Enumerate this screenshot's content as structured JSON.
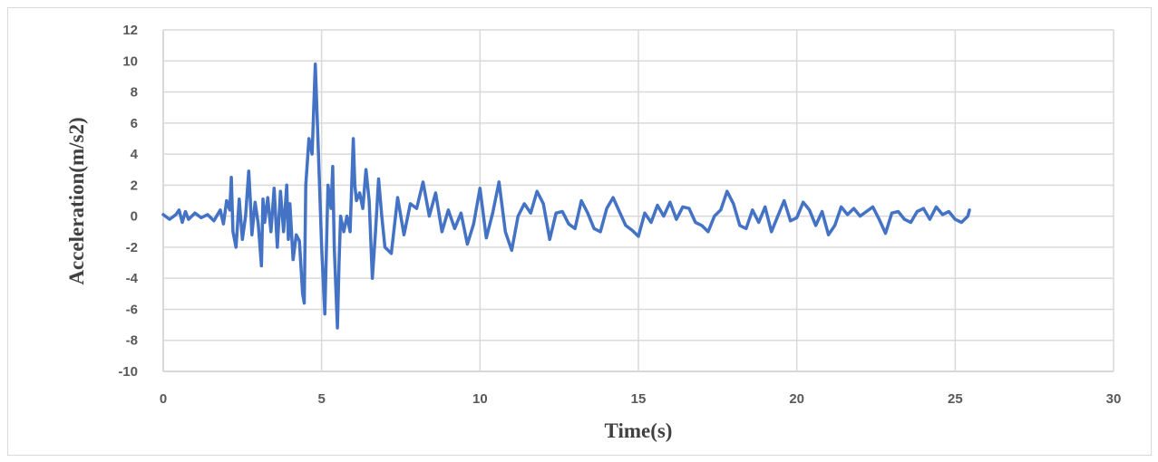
{
  "chart_data": {
    "type": "line",
    "title": "",
    "xlabel": "Time(s)",
    "ylabel": "Acceleration(m/s2)",
    "xlim": [
      0,
      30
    ],
    "ylim": [
      -10,
      12
    ],
    "x_ticks": [
      "0",
      "5",
      "10",
      "15",
      "20",
      "25",
      "30"
    ],
    "y_ticks": [
      "12",
      "10",
      "8",
      "6",
      "4",
      "2",
      "0",
      "-2",
      "-4",
      "-6",
      "-8",
      "-10"
    ],
    "grid": true,
    "legend": "none",
    "series": [
      {
        "color": "#4472C4",
        "x": [
          0,
          0.2,
          0.4,
          0.5,
          0.6,
          0.7,
          0.8,
          1.0,
          1.2,
          1.4,
          1.6,
          1.8,
          1.9,
          2.0,
          2.1,
          2.15,
          2.2,
          2.3,
          2.4,
          2.5,
          2.6,
          2.7,
          2.75,
          2.8,
          2.9,
          3.0,
          3.1,
          3.15,
          3.2,
          3.3,
          3.4,
          3.5,
          3.6,
          3.7,
          3.8,
          3.9,
          3.95,
          4.0,
          4.1,
          4.2,
          4.3,
          4.4,
          4.45,
          4.5,
          4.6,
          4.7,
          4.8,
          4.85,
          4.9,
          5.0,
          5.1,
          5.2,
          5.3,
          5.35,
          5.4,
          5.5,
          5.55,
          5.6,
          5.7,
          5.8,
          5.9,
          6.0,
          6.05,
          6.1,
          6.2,
          6.3,
          6.4,
          6.5,
          6.6,
          6.7,
          6.8,
          6.9,
          7.0,
          7.2,
          7.4,
          7.6,
          7.8,
          8.0,
          8.2,
          8.4,
          8.6,
          8.8,
          9.0,
          9.2,
          9.4,
          9.6,
          9.8,
          10.0,
          10.2,
          10.4,
          10.6,
          10.8,
          11.0,
          11.2,
          11.4,
          11.6,
          11.8,
          12.0,
          12.2,
          12.4,
          12.6,
          12.8,
          13.0,
          13.2,
          13.4,
          13.6,
          13.8,
          14.0,
          14.2,
          14.4,
          14.6,
          14.8,
          15.0,
          15.2,
          15.4,
          15.6,
          15.8,
          16.0,
          16.2,
          16.4,
          16.6,
          16.8,
          17.0,
          17.2,
          17.4,
          17.6,
          17.8,
          18.0,
          18.2,
          18.4,
          18.6,
          18.8,
          19.0,
          19.2,
          19.4,
          19.6,
          19.8,
          20.0,
          20.2,
          20.4,
          20.6,
          20.8,
          21.0,
          21.2,
          21.4,
          21.6,
          21.8,
          22.0,
          22.2,
          22.4,
          22.6,
          22.8,
          23.0,
          23.2,
          23.4,
          23.6,
          23.8,
          24.0,
          24.2,
          24.4,
          24.6,
          24.8,
          25.0,
          25.2,
          25.4,
          25.45
        ],
        "y": [
          0.1,
          -0.2,
          0.1,
          0.4,
          -0.4,
          0.3,
          -0.2,
          0.2,
          -0.1,
          0.1,
          -0.3,
          0.4,
          -0.5,
          1.0,
          0.4,
          2.5,
          -1.0,
          -2.0,
          1.1,
          -1.5,
          0.0,
          2.9,
          1.0,
          -1.2,
          0.9,
          -0.5,
          -3.2,
          1.1,
          -0.4,
          1.2,
          -1.0,
          1.8,
          -2.0,
          1.6,
          -1.0,
          2.0,
          -1.5,
          0.8,
          -2.8,
          -1.2,
          -1.6,
          -5.0,
          -5.6,
          2.0,
          5.0,
          4.0,
          9.8,
          7.0,
          4.0,
          -2.0,
          -6.3,
          2.0,
          0.5,
          3.2,
          -2.0,
          -7.2,
          -3.0,
          0.0,
          -1.0,
          0.0,
          -1.0,
          5.0,
          2.0,
          1.0,
          1.5,
          0.5,
          3.0,
          1.0,
          -4.0,
          -1.0,
          2.4,
          0.0,
          -2.0,
          -2.4,
          1.2,
          -1.2,
          0.8,
          0.5,
          2.2,
          0.0,
          1.5,
          -1.0,
          0.4,
          -0.8,
          0.2,
          -1.8,
          -0.5,
          1.8,
          -1.4,
          0.2,
          2.2,
          -1.0,
          -2.2,
          0.0,
          0.8,
          0.2,
          1.6,
          0.8,
          -1.5,
          0.2,
          0.3,
          -0.5,
          -0.8,
          1.0,
          0.2,
          -0.8,
          -1.0,
          0.5,
          1.2,
          0.3,
          -0.6,
          -0.9,
          -1.3,
          0.2,
          -0.4,
          0.7,
          0.0,
          0.9,
          -0.2,
          0.6,
          0.5,
          -0.4,
          -0.6,
          -1.0,
          0.0,
          0.4,
          1.6,
          0.8,
          -0.6,
          -0.8,
          0.4,
          -0.4,
          0.6,
          -1.0,
          0.0,
          1.0,
          -0.3,
          -0.1,
          0.9,
          0.4,
          -0.6,
          0.3,
          -1.2,
          -0.6,
          0.6,
          0.1,
          0.5,
          0.0,
          0.3,
          0.6,
          -0.2,
          -1.1,
          0.2,
          0.3,
          -0.2,
          -0.4,
          0.3,
          0.5,
          -0.2,
          0.6,
          0.1,
          0.3,
          -0.2,
          -0.4,
          0.0,
          0.4
        ]
      }
    ]
  }
}
